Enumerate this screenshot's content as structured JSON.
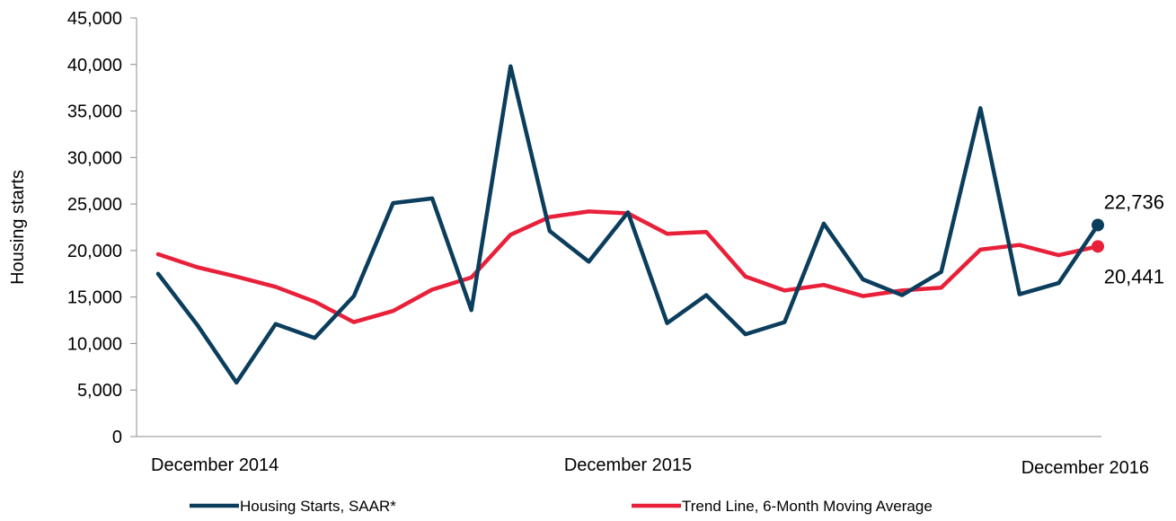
{
  "chart_data": {
    "type": "line",
    "title": "",
    "xlabel": "",
    "ylabel": "Housing starts",
    "ylim": [
      0,
      45000
    ],
    "yticks": [
      0,
      5000,
      10000,
      15000,
      20000,
      25000,
      30000,
      35000,
      40000,
      45000
    ],
    "ytick_labels": [
      "0",
      "5,000",
      "10,000",
      "15,000",
      "20,000",
      "25,000",
      "30,000",
      "35,000",
      "40,000",
      "45,000"
    ],
    "x": [
      "2014-12",
      "2015-01",
      "2015-02",
      "2015-03",
      "2015-04",
      "2015-05",
      "2015-06",
      "2015-07",
      "2015-08",
      "2015-09",
      "2015-10",
      "2015-11",
      "2015-12",
      "2016-01",
      "2016-02",
      "2016-03",
      "2016-04",
      "2016-05",
      "2016-06",
      "2016-07",
      "2016-08",
      "2016-09",
      "2016-10",
      "2016-11",
      "2016-12"
    ],
    "xtick_labels": [
      {
        "x": "2014-12",
        "label": "December 2014"
      },
      {
        "x": "2015-12",
        "label": "December 2015"
      },
      {
        "x": "2016-12",
        "label": "December 2016"
      }
    ],
    "series": [
      {
        "name": "Housing Starts, SAAR*",
        "color": "#0b3d5c",
        "values": [
          17500,
          12000,
          5800,
          12100,
          10600,
          15100,
          25100,
          25600,
          13600,
          39800,
          22100,
          18800,
          24100,
          12200,
          15200,
          11000,
          12300,
          22900,
          16900,
          15200,
          17700,
          35300,
          15300,
          16500,
          22736
        ],
        "end_label": "22,736"
      },
      {
        "name": "Trend Line, 6-Month Moving Average",
        "color": "#e8203a",
        "values": [
          19600,
          18200,
          17200,
          16100,
          14500,
          12300,
          13500,
          15800,
          17100,
          21700,
          23600,
          24200,
          24000,
          21800,
          22000,
          17200,
          15700,
          16300,
          15100,
          15700,
          16000,
          20100,
          20600,
          19500,
          20441
        ],
        "end_label": "20,441"
      }
    ],
    "legend_position": "bottom",
    "grid": false
  }
}
